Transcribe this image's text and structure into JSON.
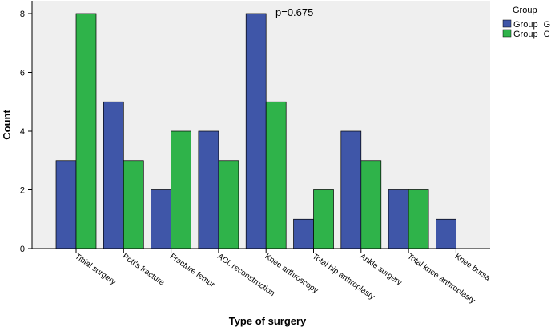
{
  "chart_data": {
    "type": "bar",
    "xlabel": "Type of surgery",
    "ylabel": "Count",
    "ylim": [
      0,
      8
    ],
    "yticks": [
      0,
      2,
      4,
      6,
      8
    ],
    "annotation": "p=0.675",
    "legend": {
      "title": "Group",
      "position": "top-right"
    },
    "categories": [
      "Tibial surgery",
      "Pott's fracture",
      "Fracture femur",
      "ACL reconstruction",
      "Knee arthroscopy",
      "Total hip arthroplasty",
      "Ankle surgery",
      "Total knee arthroplasty",
      "Knee bursa"
    ],
    "series": [
      {
        "name": "Group",
        "suffix": "G",
        "color": "#3f56a8",
        "values": [
          3,
          5,
          2,
          4,
          8,
          1,
          4,
          2,
          1
        ]
      },
      {
        "name": "Group",
        "suffix": "C",
        "color": "#2fb34a",
        "values": [
          8,
          3,
          4,
          3,
          5,
          2,
          3,
          2,
          0
        ]
      }
    ],
    "plot_background": "#efefef"
  }
}
